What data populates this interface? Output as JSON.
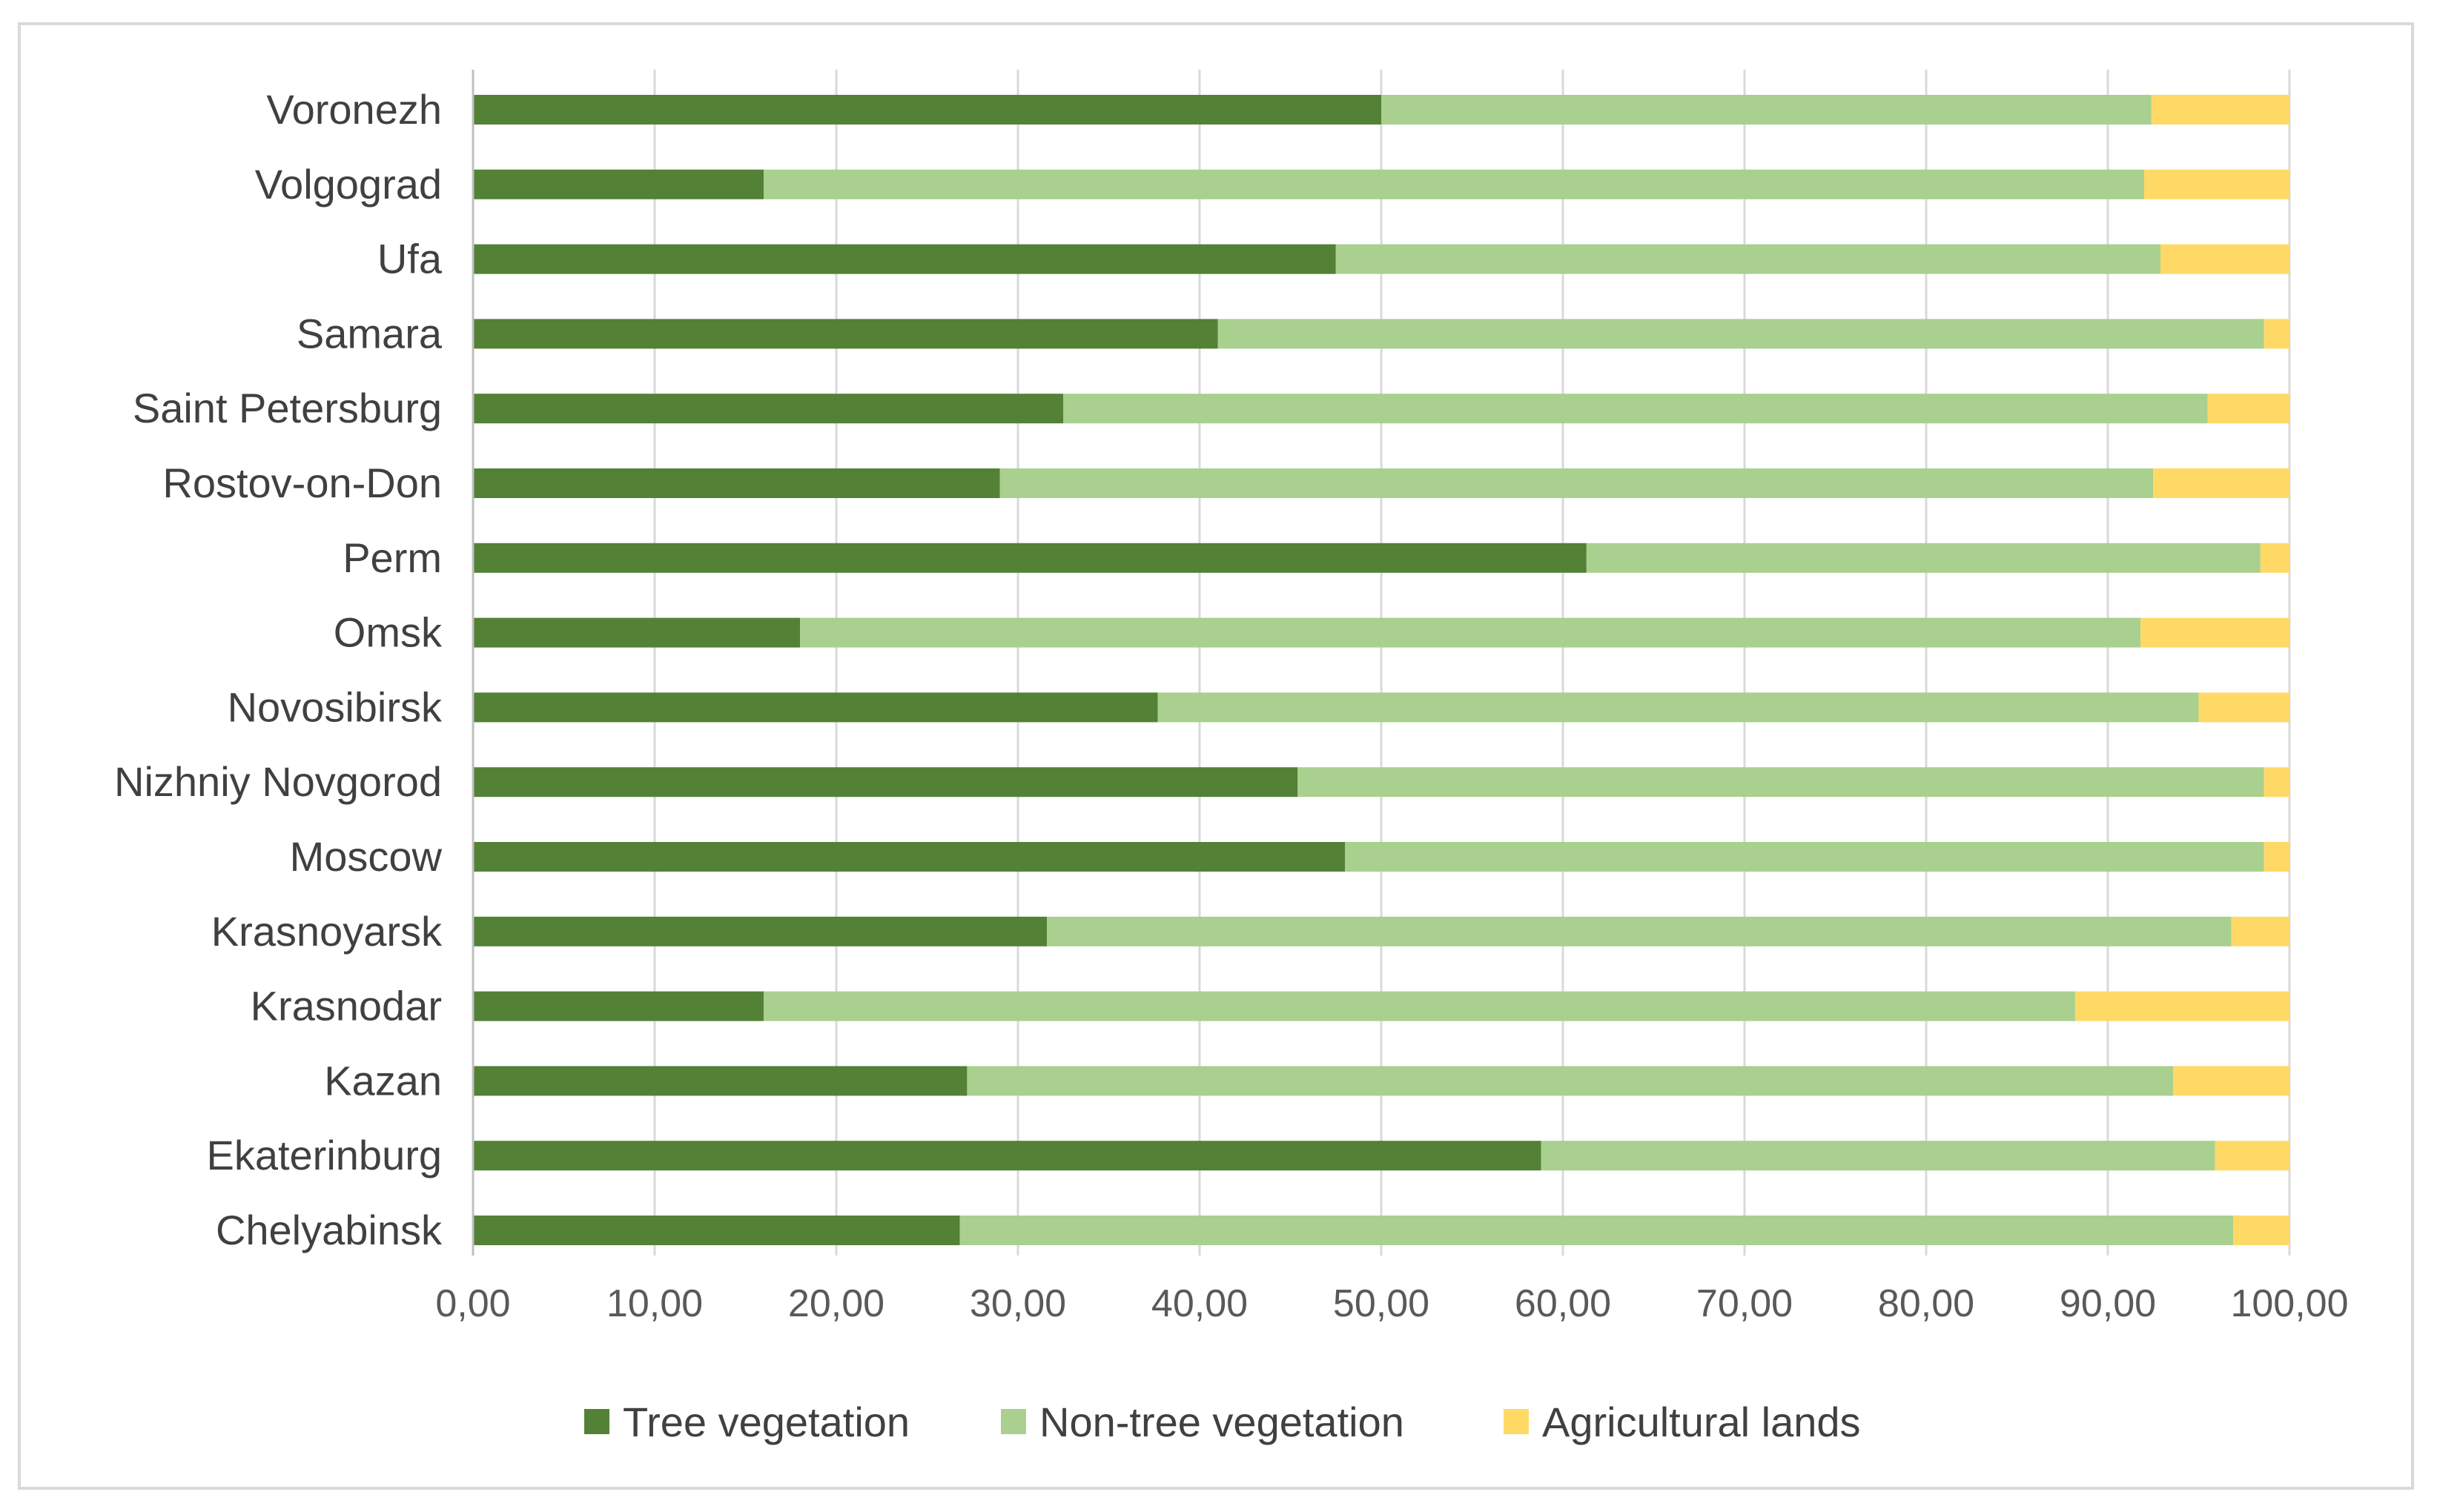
{
  "chart_data": {
    "type": "bar",
    "orientation": "horizontal",
    "stacked": true,
    "title": "",
    "xlabel": "",
    "ylabel": "",
    "xlim": [
      0,
      100
    ],
    "x_ticks": [
      "0,00",
      "10,00",
      "20,00",
      "30,00",
      "40,00",
      "50,00",
      "60,00",
      "70,00",
      "80,00",
      "90,00",
      "100,00"
    ],
    "grid": true,
    "legend_position": "bottom",
    "categories": [
      "Voronezh",
      "Volgograd",
      "Ufa",
      "Samara",
      "Saint Petersburg",
      "Rostov-on-Don",
      "Perm",
      "Omsk",
      "Novosibirsk",
      "Nizhniy Novgorod",
      "Moscow",
      "Krasnoyarsk",
      "Krasnodar",
      "Kazan",
      "Ekaterinburg",
      "Chelyabinsk"
    ],
    "series": [
      {
        "name": "Tree vegetation",
        "color": "#538135",
        "values": [
          50.0,
          16.0,
          47.5,
          41.0,
          32.5,
          29.0,
          61.3,
          18.0,
          37.7,
          45.4,
          48.0,
          31.6,
          16.0,
          27.2,
          58.8,
          26.8
        ]
      },
      {
        "name": "Non-tree vegetation",
        "color": "#a9d08e",
        "values": [
          42.4,
          76.0,
          45.4,
          57.6,
          63.0,
          63.5,
          37.1,
          73.8,
          57.3,
          53.2,
          50.6,
          65.2,
          72.2,
          66.4,
          37.1,
          70.1
        ]
      },
      {
        "name": "Agricultural lands",
        "color": "#ffd966",
        "values": [
          7.6,
          8.0,
          7.1,
          1.4,
          4.5,
          7.5,
          1.6,
          8.2,
          5.0,
          1.4,
          1.4,
          3.2,
          11.8,
          6.4,
          4.1,
          3.1
        ]
      }
    ]
  }
}
